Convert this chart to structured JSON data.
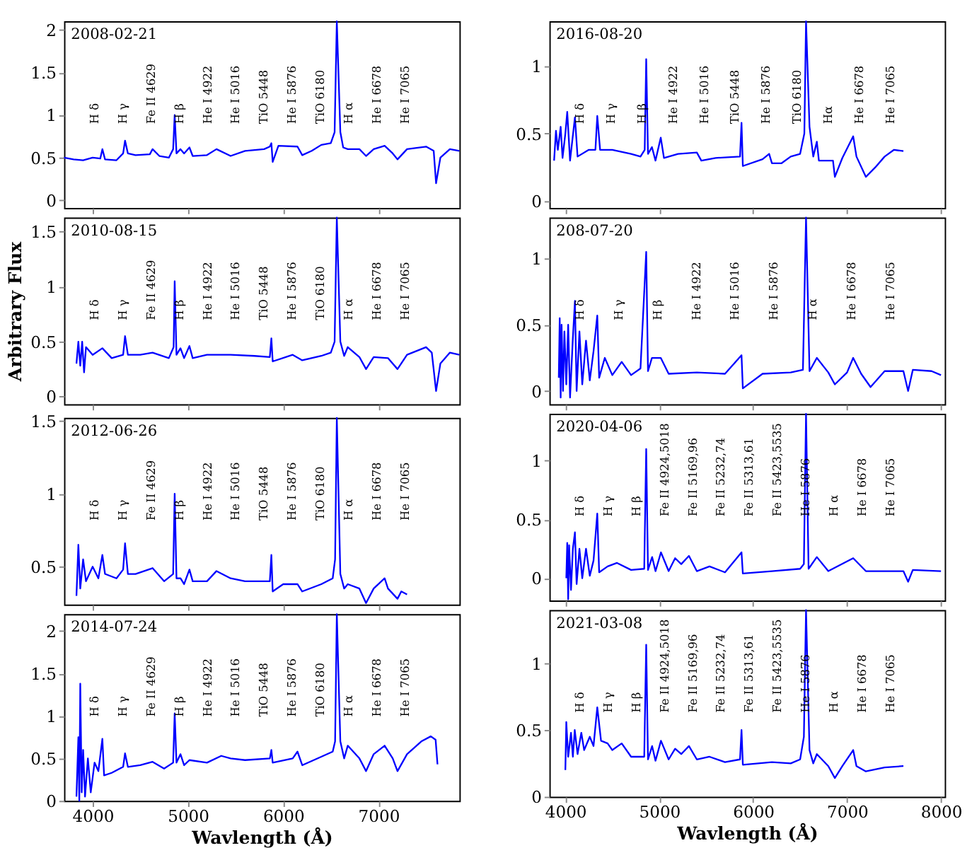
{
  "chart_data": [
    {
      "type": "line",
      "title": "2008-02-21",
      "xlim": [
        3700,
        7850
      ],
      "xticks": [
        4000,
        5000,
        6000,
        7000
      ],
      "ylim": [
        -0.09,
        2.1
      ],
      "yticks": [
        0,
        0.5,
        1,
        1.5,
        2
      ],
      "tick_labels": "y",
      "grid": false,
      "x": [
        3700,
        3800,
        3900,
        4000,
        4080,
        4102,
        4130,
        4250,
        4320,
        4340,
        4370,
        4450,
        4600,
        4629,
        4700,
        4800,
        4845,
        4861,
        4880,
        4922,
        4960,
        5016,
        5050,
        5200,
        5300,
        5448,
        5600,
        5800,
        5860,
        5876,
        5890,
        5950,
        6150,
        6200,
        6300,
        6400,
        6500,
        6540,
        6563,
        6600,
        6630,
        6678,
        6800,
        6870,
        6950,
        7065,
        7150,
        7200,
        7300,
        7500,
        7580,
        7605,
        7650,
        7750,
        7850
      ],
      "series": [
        {
          "color": "#0000ff",
          "values": [
            0.5,
            0.48,
            0.47,
            0.5,
            0.49,
            0.6,
            0.48,
            0.47,
            0.55,
            0.7,
            0.55,
            0.53,
            0.54,
            0.6,
            0.52,
            0.5,
            0.6,
            1.0,
            0.55,
            0.6,
            0.55,
            0.62,
            0.52,
            0.53,
            0.6,
            0.52,
            0.58,
            0.6,
            0.63,
            0.67,
            0.45,
            0.64,
            0.63,
            0.53,
            0.58,
            0.65,
            0.67,
            0.8,
            2.1,
            0.8,
            0.62,
            0.6,
            0.6,
            0.52,
            0.6,
            0.64,
            0.55,
            0.48,
            0.6,
            0.63,
            0.58,
            0.2,
            0.5,
            0.6,
            0.58
          ]
        }
      ],
      "annotations": [
        "H δ",
        "H γ",
        "Fe II 4629",
        "H β",
        "He I 4922",
        "He I 5016",
        "TiO 5448",
        "He I 5876",
        "TiO 6180",
        "H α",
        "He I 6678",
        "He I 7065"
      ]
    },
    {
      "type": "line",
      "title": "2010-08-15",
      "ylabel": "Arbitrary Flux",
      "xlim": [
        3700,
        7850
      ],
      "xticks": [
        4000,
        5000,
        6000,
        7000
      ],
      "ylim": [
        -0.07,
        1.63
      ],
      "yticks": [
        0,
        0.5,
        1,
        1.5
      ],
      "tick_labels": "y",
      "grid": false,
      "x": [
        3830,
        3850,
        3870,
        3890,
        3910,
        3930,
        4000,
        4102,
        4200,
        4320,
        4340,
        4370,
        4500,
        4629,
        4800,
        4850,
        4861,
        4880,
        4922,
        4960,
        5016,
        5050,
        5200,
        5448,
        5700,
        5860,
        5876,
        5890,
        6100,
        6200,
        6400,
        6500,
        6540,
        6563,
        6600,
        6640,
        6678,
        6800,
        6870,
        6950,
        7100,
        7200,
        7300,
        7500,
        7560,
        7605,
        7650,
        7750,
        7850
      ],
      "series": [
        {
          "color": "#0000ff",
          "values": [
            0.3,
            0.5,
            0.28,
            0.5,
            0.22,
            0.45,
            0.38,
            0.44,
            0.35,
            0.38,
            0.55,
            0.38,
            0.38,
            0.4,
            0.35,
            0.45,
            1.05,
            0.38,
            0.44,
            0.35,
            0.46,
            0.35,
            0.38,
            0.38,
            0.37,
            0.36,
            0.53,
            0.32,
            0.38,
            0.33,
            0.37,
            0.4,
            0.5,
            1.63,
            0.5,
            0.37,
            0.45,
            0.36,
            0.25,
            0.36,
            0.35,
            0.25,
            0.38,
            0.45,
            0.4,
            0.05,
            0.3,
            0.4,
            0.38
          ]
        }
      ],
      "annotations": [
        "H δ",
        "H γ",
        "Fe II 4629",
        "H β",
        "He I 4922",
        "He I 5016",
        "TiO 5448",
        "He I 5876",
        "TiO 6180",
        "H α",
        "He I 6678",
        "He I 7065"
      ]
    },
    {
      "type": "line",
      "title": "2012-06-26",
      "xlim": [
        3700,
        7850
      ],
      "xticks": [
        4000,
        5000,
        6000,
        7000
      ],
      "ylim": [
        0.24,
        1.52
      ],
      "yticks": [
        0.5,
        1,
        1.5
      ],
      "tick_labels": "y",
      "grid": false,
      "x": [
        3830,
        3850,
        3870,
        3900,
        3930,
        4000,
        4060,
        4102,
        4130,
        4250,
        4320,
        4340,
        4370,
        4450,
        4629,
        4750,
        4845,
        4861,
        4880,
        4922,
        4960,
        5016,
        5050,
        5200,
        5300,
        5448,
        5600,
        5860,
        5876,
        5890,
        6000,
        6150,
        6200,
        6400,
        6520,
        6545,
        6563,
        6600,
        6640,
        6678,
        6800,
        6870,
        6950,
        7065,
        7100,
        7200,
        7240,
        7300
      ],
      "series": [
        {
          "color": "#0000ff",
          "values": [
            0.3,
            0.65,
            0.35,
            0.55,
            0.4,
            0.5,
            0.42,
            0.58,
            0.45,
            0.42,
            0.48,
            0.66,
            0.45,
            0.45,
            0.49,
            0.4,
            0.45,
            1.0,
            0.42,
            0.42,
            0.38,
            0.48,
            0.4,
            0.4,
            0.47,
            0.42,
            0.4,
            0.4,
            0.58,
            0.33,
            0.38,
            0.38,
            0.33,
            0.38,
            0.42,
            0.55,
            1.52,
            0.45,
            0.35,
            0.38,
            0.35,
            0.25,
            0.35,
            0.42,
            0.35,
            0.28,
            0.33,
            0.31
          ]
        }
      ],
      "annotations": [
        "H δ",
        "H γ",
        "Fe II 4629",
        "H β",
        "He I 4922",
        "He I 5016",
        "TiO 5448",
        "He I 5876",
        "TiO 6180",
        "H α",
        "He I 6678",
        "He I 7065"
      ]
    },
    {
      "type": "line",
      "title": "2014-07-24",
      "xlabel": "Wavlength (Å)",
      "xlim": [
        3700,
        7850
      ],
      "xticks": [
        4000,
        5000,
        6000,
        7000
      ],
      "ylim": [
        0,
        2.2
      ],
      "yticks": [
        0,
        0.5,
        1,
        1.5,
        2
      ],
      "grid": false,
      "x": [
        3830,
        3850,
        3860,
        3870,
        3885,
        3900,
        3920,
        3950,
        3980,
        4020,
        4060,
        4102,
        4120,
        4200,
        4320,
        4340,
        4370,
        4500,
        4629,
        4750,
        4845,
        4861,
        4880,
        4922,
        4960,
        5016,
        5200,
        5350,
        5448,
        5600,
        5860,
        5876,
        5890,
        6100,
        6150,
        6200,
        6400,
        6520,
        6545,
        6563,
        6600,
        6640,
        6678,
        6800,
        6870,
        6950,
        7065,
        7150,
        7200,
        7300,
        7400,
        7450,
        7550,
        7600,
        7620
      ],
      "series": [
        {
          "color": "#0000ff",
          "values": [
            0.05,
            0.75,
            0.0,
            1.38,
            0.1,
            0.6,
            0.05,
            0.5,
            0.1,
            0.45,
            0.35,
            0.73,
            0.3,
            0.33,
            0.4,
            0.56,
            0.4,
            0.42,
            0.46,
            0.38,
            0.45,
            1.03,
            0.45,
            0.55,
            0.42,
            0.48,
            0.45,
            0.53,
            0.5,
            0.48,
            0.5,
            0.6,
            0.45,
            0.5,
            0.58,
            0.42,
            0.52,
            0.58,
            0.7,
            2.2,
            0.7,
            0.5,
            0.65,
            0.5,
            0.35,
            0.55,
            0.65,
            0.5,
            0.35,
            0.55,
            0.65,
            0.7,
            0.76,
            0.72,
            0.43
          ]
        }
      ],
      "annotations": [
        "H δ",
        "H γ",
        "Fe II 4629",
        "H β",
        "He I 4922",
        "He I 5016",
        "TiO 5448",
        "He I 5876",
        "TiO 6180",
        "H α",
        "He I 6678",
        "He I 7065"
      ]
    },
    {
      "type": "line",
      "title": "2016-08-20",
      "xlim": [
        3830,
        8040
      ],
      "xticks": [
        4000,
        5000,
        6000,
        7000,
        8000
      ],
      "ylim": [
        -0.05,
        1.33
      ],
      "yticks": [
        0,
        0.5,
        1
      ],
      "tick_labels": "y",
      "grid": false,
      "x": [
        3880,
        3900,
        3920,
        3950,
        3970,
        4000,
        4020,
        4050,
        4102,
        4130,
        4250,
        4320,
        4340,
        4370,
        4500,
        4700,
        4800,
        4845,
        4861,
        4880,
        4922,
        4960,
        5016,
        5050,
        5200,
        5400,
        5448,
        5600,
        5860,
        5876,
        5890,
        6100,
        6170,
        6200,
        6300,
        6400,
        6500,
        6545,
        6563,
        6600,
        6640,
        6678,
        6700,
        6850,
        6870,
        6950,
        7065,
        7100,
        7200,
        7300,
        7400,
        7500,
        7600
      ],
      "series": [
        {
          "color": "#0000ff",
          "values": [
            0.3,
            0.52,
            0.38,
            0.55,
            0.32,
            0.5,
            0.66,
            0.3,
            0.62,
            0.33,
            0.38,
            0.38,
            0.63,
            0.38,
            0.38,
            0.35,
            0.33,
            0.38,
            1.05,
            0.35,
            0.4,
            0.3,
            0.47,
            0.32,
            0.35,
            0.36,
            0.3,
            0.32,
            0.33,
            0.58,
            0.26,
            0.31,
            0.35,
            0.28,
            0.28,
            0.33,
            0.35,
            0.5,
            1.33,
            0.55,
            0.33,
            0.44,
            0.3,
            0.3,
            0.18,
            0.32,
            0.48,
            0.33,
            0.18,
            0.25,
            0.33,
            0.38,
            0.37
          ]
        }
      ],
      "annotations": [
        "H δ",
        "H γ",
        "H β",
        "He I 4922",
        "He I 5016",
        "TiO 5448",
        "He I 5876",
        "TiO 6180",
        "Hα",
        "He I 6678",
        "He I 7065"
      ]
    },
    {
      "type": "line",
      "title": "208-07-20",
      "xlim": [
        3830,
        8040
      ],
      "xticks": [
        4000,
        5000,
        6000,
        7000,
        8000
      ],
      "ylim": [
        -0.1,
        1.31
      ],
      "yticks": [
        0,
        0.5,
        1
      ],
      "tick_labels": "y",
      "grid": false,
      "x": [
        3930,
        3940,
        3950,
        3960,
        3975,
        3990,
        4010,
        4030,
        4050,
        4080,
        4102,
        4120,
        4150,
        4180,
        4220,
        4260,
        4300,
        4340,
        4360,
        4420,
        4500,
        4600,
        4700,
        4800,
        4861,
        4880,
        4922,
        5016,
        5100,
        5400,
        5700,
        5876,
        5890,
        6100,
        6400,
        6530,
        6563,
        6600,
        6678,
        6800,
        6870,
        7000,
        7065,
        7150,
        7250,
        7400,
        7600,
        7650,
        7700,
        7900,
        8000
      ],
      "series": [
        {
          "color": "#0000ff",
          "values": [
            0.1,
            0.55,
            -0.05,
            0.5,
            0.0,
            0.45,
            0.05,
            0.5,
            -0.05,
            0.4,
            0.68,
            0.0,
            0.45,
            0.05,
            0.38,
            0.08,
            0.3,
            0.57,
            0.1,
            0.25,
            0.12,
            0.22,
            0.12,
            0.17,
            1.05,
            0.15,
            0.25,
            0.25,
            0.13,
            0.14,
            0.13,
            0.27,
            0.02,
            0.13,
            0.14,
            0.16,
            1.31,
            0.15,
            0.25,
            0.14,
            0.05,
            0.14,
            0.25,
            0.13,
            0.03,
            0.15,
            0.15,
            0.0,
            0.16,
            0.15,
            0.12
          ]
        }
      ],
      "annotations": [
        "H δ",
        "H γ",
        "H β",
        "He I 4922",
        "He I 5016",
        "He I 5876",
        "H α",
        "He I 6678",
        "He I 7065"
      ]
    },
    {
      "type": "line",
      "title": "2020-04-06",
      "xlim": [
        3830,
        8040
      ],
      "xticks": [
        4000,
        5000,
        6000,
        7000,
        8000
      ],
      "ylim": [
        -0.19,
        1.4
      ],
      "yticks": [
        0,
        0.5,
        1
      ],
      "tick_labels": "y",
      "grid": false,
      "x": [
        4010,
        4020,
        4030,
        4040,
        4060,
        4080,
        4102,
        4120,
        4150,
        4180,
        4220,
        4260,
        4300,
        4340,
        4360,
        4450,
        4550,
        4700,
        4840,
        4861,
        4880,
        4924,
        4960,
        5018,
        5100,
        5169,
        5234,
        5316,
        5400,
        5535,
        5700,
        5876,
        5890,
        6200,
        6500,
        6540,
        6563,
        6590,
        6678,
        6800,
        7065,
        7200,
        7500,
        7600,
        7650,
        7700,
        8000
      ],
      "series": [
        {
          "color": "#0000ff",
          "values": [
            0.0,
            0.3,
            -0.18,
            0.28,
            -0.1,
            0.25,
            0.39,
            -0.05,
            0.25,
            0.0,
            0.25,
            0.02,
            0.15,
            0.55,
            0.05,
            0.1,
            0.13,
            0.07,
            0.08,
            1.1,
            0.07,
            0.18,
            0.06,
            0.22,
            0.06,
            0.17,
            0.12,
            0.19,
            0.06,
            0.1,
            0.05,
            0.22,
            0.04,
            0.06,
            0.08,
            0.12,
            1.4,
            0.08,
            0.18,
            0.06,
            0.17,
            0.06,
            0.06,
            0.06,
            -0.03,
            0.07,
            0.06
          ]
        }
      ],
      "annotations": [
        "H δ",
        "H γ",
        "H β",
        "Fe II 4924,5018",
        "Fe II 5169,96",
        "Fe II 5232,74",
        "Fe II 5313,61",
        "Fe II 5423,5535",
        "He I 5876",
        "H α",
        "He I 6678",
        "He I 7065"
      ]
    },
    {
      "type": "line",
      "title": "2021-03-08",
      "xlabel": "Wavlength (Å)",
      "xlim": [
        3830,
        8040
      ],
      "xticks": [
        4000,
        5000,
        6000,
        7000,
        8000
      ],
      "ylim": [
        0,
        1.4
      ],
      "yticks": [
        0,
        0.5,
        1
      ],
      "grid": false,
      "x": [
        4000,
        4010,
        4030,
        4060,
        4080,
        4100,
        4130,
        4170,
        4200,
        4260,
        4300,
        4340,
        4380,
        4450,
        4500,
        4600,
        4700,
        4840,
        4861,
        4880,
        4924,
        4960,
        5018,
        5100,
        5169,
        5234,
        5316,
        5400,
        5535,
        5700,
        5860,
        5876,
        5890,
        6200,
        6400,
        6500,
        6540,
        6563,
        6600,
        6640,
        6678,
        6800,
        6870,
        6950,
        7065,
        7100,
        7200,
        7400,
        7600
      ],
      "series": [
        {
          "color": "#0000ff",
          "values": [
            0.2,
            0.56,
            0.3,
            0.48,
            0.3,
            0.5,
            0.32,
            0.48,
            0.35,
            0.45,
            0.38,
            0.67,
            0.42,
            0.4,
            0.35,
            0.4,
            0.3,
            0.3,
            1.14,
            0.28,
            0.38,
            0.27,
            0.42,
            0.28,
            0.36,
            0.32,
            0.38,
            0.28,
            0.3,
            0.26,
            0.28,
            0.5,
            0.24,
            0.26,
            0.25,
            0.28,
            0.45,
            1.4,
            0.35,
            0.25,
            0.32,
            0.23,
            0.14,
            0.23,
            0.35,
            0.23,
            0.19,
            0.22,
            0.23
          ]
        }
      ],
      "annotations": [
        "H δ",
        "H γ",
        "H β",
        "Fe II 4924,5018",
        "Fe II 5169,96",
        "Fe II 5232,74",
        "Fe II 5313,61",
        "Fe II 5423,5535",
        "He I 5876",
        "H α",
        "He I 6678",
        "He I 7065"
      ]
    }
  ]
}
